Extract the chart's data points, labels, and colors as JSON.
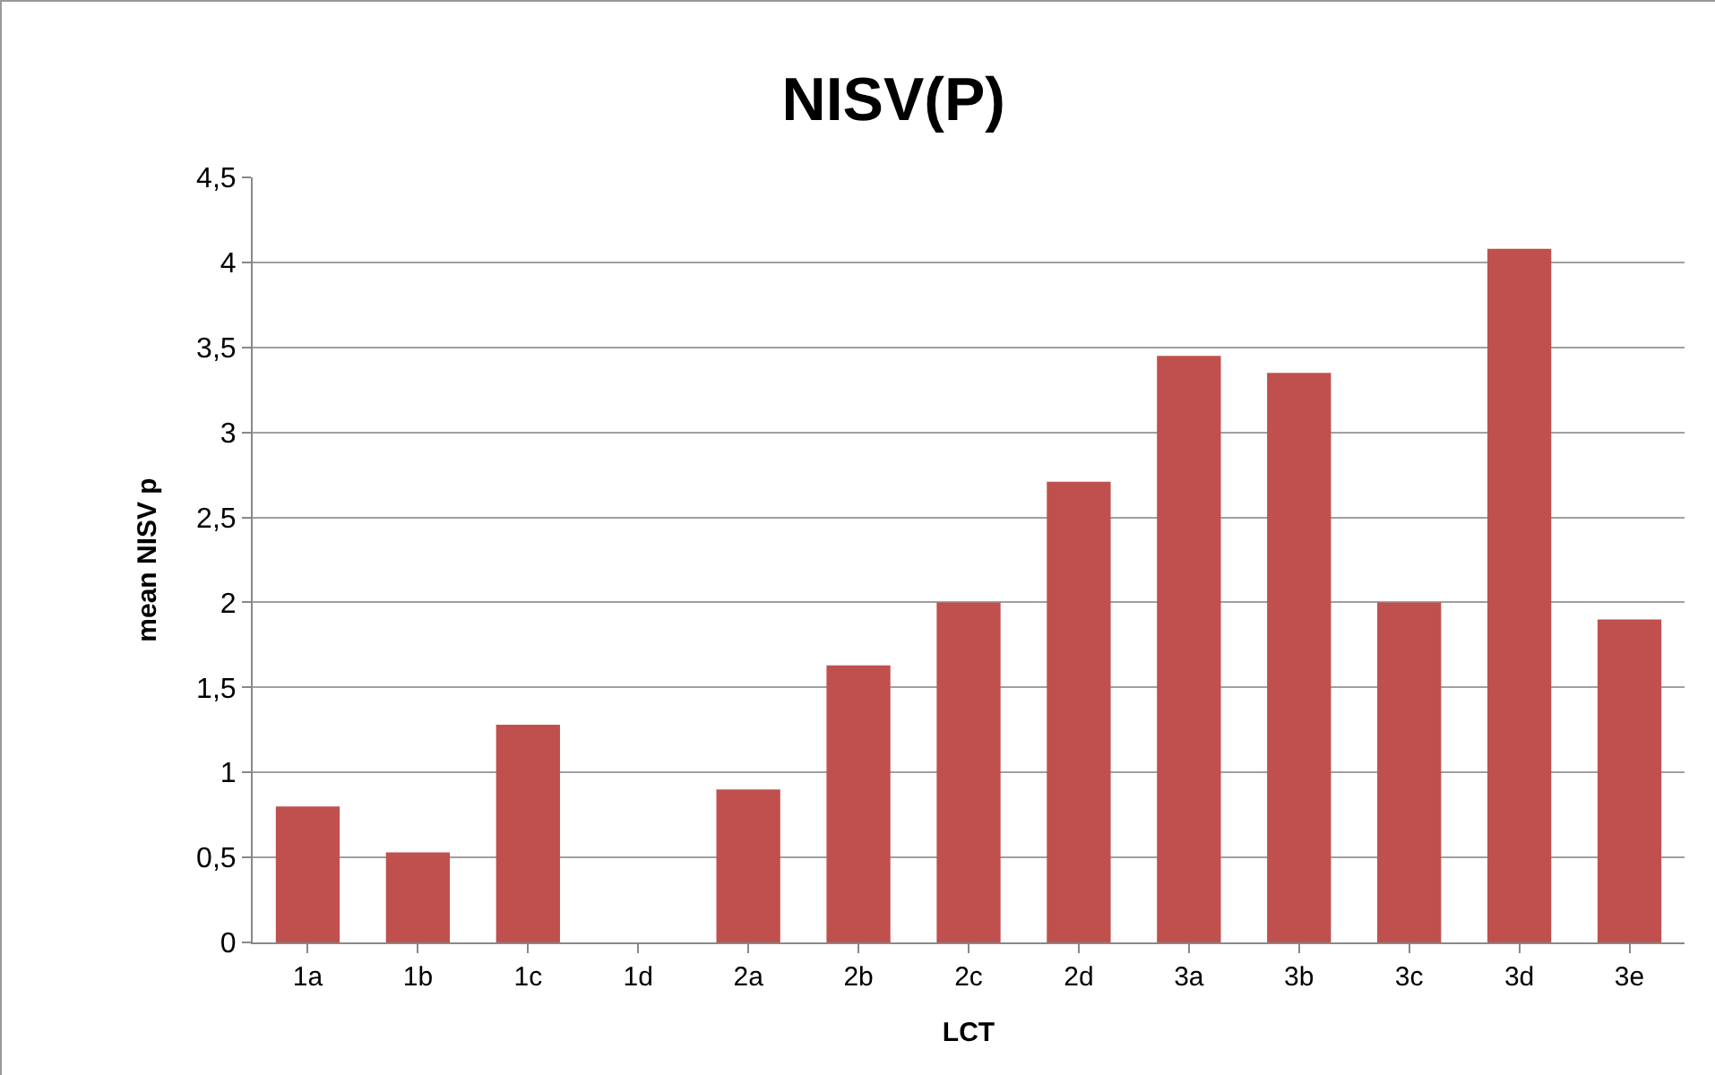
{
  "chart_data": {
    "type": "bar",
    "title": "NISV(P)",
    "xlabel": "LCT",
    "ylabel": "mean NISV p",
    "categories": [
      "1a",
      "1b",
      "1c",
      "1d",
      "2a",
      "2b",
      "2c",
      "2d",
      "3a",
      "3b",
      "3c",
      "3d",
      "3e"
    ],
    "values": [
      0.8,
      0.53,
      1.28,
      0,
      0.9,
      1.63,
      2.0,
      2.71,
      3.45,
      3.35,
      2.0,
      4.08,
      1.9
    ],
    "color": "#c0504d",
    "ylim": [
      0,
      4.5
    ],
    "yticks": [
      0,
      {
        "value": 0.5,
        "label": "0,5"
      },
      1,
      {
        "value": 1.5,
        "label": "1,5"
      },
      2,
      {
        "value": 2.5,
        "label": "2,5"
      },
      3,
      {
        "value": 3.5,
        "label": "3,5"
      },
      4,
      {
        "value": 4.5,
        "label": "4,5"
      }
    ],
    "grid": "y"
  }
}
